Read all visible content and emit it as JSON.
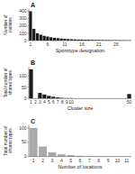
{
  "chart_data": [
    {
      "type": "bar",
      "title": "A",
      "xlabel": "Sporotype designation",
      "ylabel": "Number of\nisolates",
      "color": "#1a1a1a",
      "categories": [
        "1",
        null,
        null,
        null,
        null,
        "6",
        null,
        null,
        null,
        null,
        "11",
        null,
        null,
        null,
        null,
        "16",
        null,
        null,
        null,
        null,
        "21",
        null,
        null,
        null,
        null,
        "26",
        null,
        null,
        null,
        null
      ],
      "values": [
        400,
        160,
        100,
        80,
        65,
        55,
        45,
        38,
        32,
        28,
        24,
        20,
        18,
        16,
        14,
        13,
        12,
        11,
        10,
        9,
        8,
        7,
        6,
        6,
        5,
        5,
        4,
        4,
        3,
        3
      ],
      "ylim": [
        0,
        430
      ],
      "yticks": [
        0,
        100,
        200,
        300,
        400
      ]
    },
    {
      "type": "bar",
      "title": "B",
      "xlabel": "Cluster size",
      "ylabel": "Total number of\nshared types",
      "color": "#1a1a1a",
      "categories": [
        "1",
        "2",
        "3",
        "4",
        "5",
        "6",
        "7",
        "8",
        "9",
        "10",
        null,
        null,
        null,
        null,
        null,
        null,
        null,
        null,
        null,
        null,
        null,
        null,
        "50"
      ],
      "values": [
        130,
        0,
        25,
        18,
        12,
        8,
        5,
        3,
        2,
        2,
        0,
        0,
        0,
        0,
        0,
        0,
        0,
        0,
        0,
        0,
        0,
        0,
        20
      ],
      "ylim": [
        0,
        140
      ],
      "yticks": [
        0,
        50,
        100
      ]
    },
    {
      "type": "bar",
      "title": "C",
      "xlabel": "Number of locations",
      "ylabel": "Total number of\nshared types",
      "color": "#aaaaaa",
      "categories": [
        "1",
        "2",
        "3",
        "4",
        "5",
        "6",
        "7",
        "8",
        "9",
        "10",
        "11"
      ],
      "values": [
        100,
        35,
        15,
        8,
        5,
        3,
        2,
        2,
        1,
        1,
        1
      ],
      "ylim": [
        0,
        110
      ],
      "yticks": [
        0,
        50,
        100
      ]
    }
  ]
}
